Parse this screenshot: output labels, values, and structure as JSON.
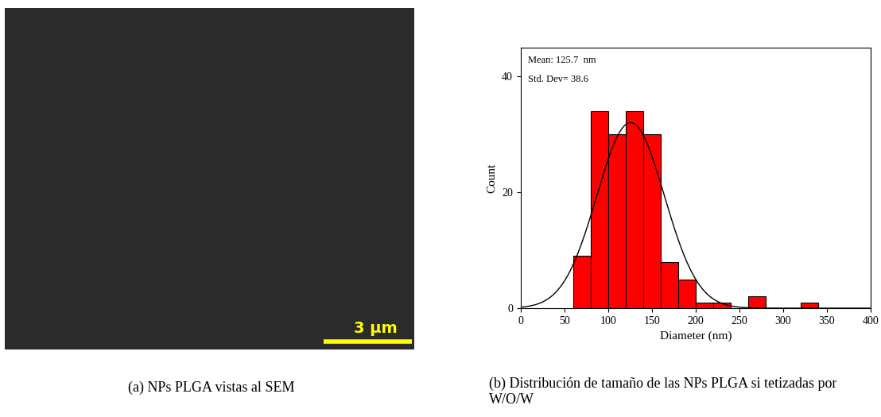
{
  "chart_data": [
    {
      "type": "image",
      "caption": "(a) NPs PLGA vistas al SEM",
      "scale_bar": "3 µm"
    },
    {
      "type": "histogram",
      "caption": "(b) Distribución de tamaño de las NPs PLGA si tetizadas por W/O/W",
      "bins": [
        60,
        80,
        100,
        120,
        140,
        160,
        180,
        200,
        220,
        240,
        260,
        280,
        300,
        320,
        340
      ],
      "counts": [
        9,
        34,
        30,
        34,
        30,
        8,
        5,
        1,
        1,
        0,
        2,
        0,
        0,
        1
      ],
      "color": "#ff0000",
      "x_label": "Diameter (nm)",
      "y_label": "Count",
      "annotations": [
        "Mean: 125.7  nm",
        "Std. Dev= 38.6"
      ],
      "fit": {
        "mean": 125.7,
        "std": 38.6
      },
      "xlim": [
        0,
        400
      ],
      "xticks": [
        0,
        50,
        100,
        150,
        200,
        250,
        300,
        350,
        400
      ],
      "ylim": [
        0,
        45
      ],
      "yticks": [
        0,
        20,
        40
      ]
    }
  ]
}
